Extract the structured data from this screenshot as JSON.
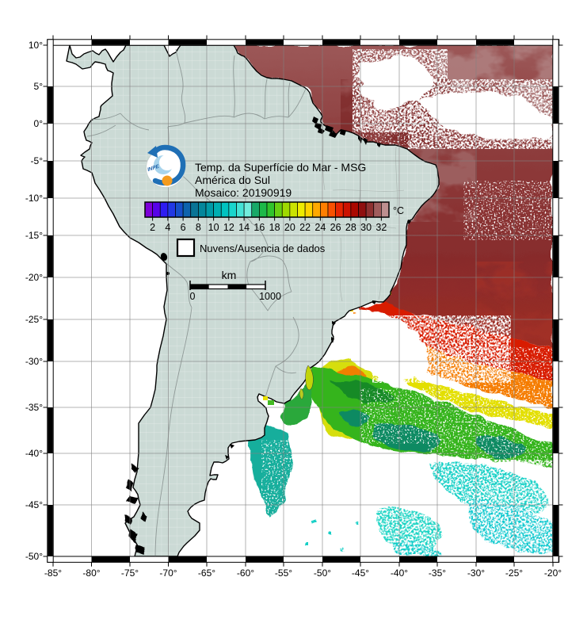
{
  "title_block": {
    "line1": "Temp. da Superfície do Mar - MSG",
    "line2": "América do Sul",
    "line3": "Mosaico: 20190919"
  },
  "colorbar": {
    "unit": "°C",
    "ticks": [
      "2",
      "4",
      "6",
      "8",
      "10",
      "12",
      "14",
      "16",
      "18",
      "20",
      "22",
      "24",
      "26",
      "28",
      "30",
      "32"
    ],
    "palette": [
      "#7d00d8",
      "#5702e8",
      "#2d1cf2",
      "#2138e4",
      "#164fc9",
      "#0d63ad",
      "#087495",
      "#03869b",
      "#009aa7",
      "#00afb2",
      "#00c3c0",
      "#19d5cc",
      "#45e3d5",
      "#72eddc",
      "#18a968",
      "#1cb948",
      "#30c32c",
      "#68cf12",
      "#9fd900",
      "#cbe300",
      "#efeb00",
      "#ffd300",
      "#ffa900",
      "#ff7f00",
      "#f85100",
      "#e62500",
      "#cc1200",
      "#ab0900",
      "#8f0f0f",
      "#8e3131",
      "#a05d5d",
      "#bd8f8f"
    ]
  },
  "cloud_legend": {
    "label": "Nuvens/Ausencia de dados"
  },
  "scalebar": {
    "unit_label": "km",
    "start_label": "0",
    "end_label": "1000"
  },
  "axes": {
    "lat_ticks": [
      "10°",
      "5°",
      "0°",
      "-5°",
      "-10°",
      "-15°",
      "-20°",
      "-25°",
      "-30°",
      "-35°",
      "-40°",
      "-45°",
      "-50°"
    ],
    "lon_ticks": [
      "-85°",
      "-80°",
      "-75°",
      "-70°",
      "-65°",
      "-60°",
      "-55°",
      "-50°",
      "-45°",
      "-40°",
      "-35°",
      "-30°",
      "-25°",
      "-20°"
    ]
  },
  "logo": {
    "label": "INPE"
  },
  "map_colors": {
    "land": "#cbdad5",
    "no_data": "#ffffff",
    "grid": "#808080",
    "coast": "#000000",
    "warm_dark": "#8a3434",
    "warm_red": "#d81e00",
    "orange": "#f57c00",
    "yellow": "#e8dc00",
    "green": "#36b41e",
    "teal": "#15ae9c",
    "cyan": "#14cfc6"
  }
}
